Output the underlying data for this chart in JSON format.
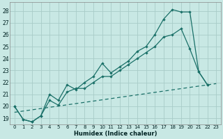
{
  "xlabel": "Humidex (Indice chaleur)",
  "background_color": "#c8e8e4",
  "grid_color": "#a8ccc8",
  "line_color": "#1a7068",
  "xlim": [
    -0.5,
    23.5
  ],
  "ylim": [
    18.5,
    28.7
  ],
  "yticks": [
    19,
    20,
    21,
    22,
    23,
    24,
    25,
    26,
    27,
    28
  ],
  "xticks": [
    0,
    1,
    2,
    3,
    4,
    5,
    6,
    7,
    8,
    9,
    10,
    11,
    12,
    13,
    14,
    15,
    16,
    17,
    18,
    19,
    20,
    21,
    22,
    23
  ],
  "series1_x": [
    0,
    1,
    2,
    3,
    4,
    5,
    6,
    7,
    8,
    9,
    10,
    11,
    12,
    13,
    14,
    15,
    16,
    17,
    18,
    19,
    20,
    21,
    22,
    23
  ],
  "series1_y": [
    20.0,
    18.9,
    18.7,
    19.2,
    21.0,
    20.5,
    21.8,
    21.4,
    22.0,
    22.5,
    23.6,
    22.8,
    23.3,
    23.8,
    24.6,
    25.0,
    26.0,
    27.3,
    28.1,
    27.9,
    27.9,
    22.9,
    21.8,
    null
  ],
  "series2_x": [
    0,
    1,
    2,
    3,
    4,
    5,
    6,
    7,
    8,
    9,
    10,
    11,
    12,
    13,
    14,
    15,
    16,
    17,
    18,
    19,
    20,
    21,
    22,
    23
  ],
  "series2_y": [
    20.0,
    18.9,
    18.7,
    19.2,
    20.5,
    20.1,
    21.2,
    21.5,
    21.5,
    22.0,
    22.5,
    22.5,
    23.0,
    23.5,
    24.0,
    24.5,
    25.0,
    25.8,
    26.0,
    26.5,
    24.8,
    22.9,
    21.8,
    null
  ],
  "series3_x": [
    0,
    23
  ],
  "series3_y": [
    19.5,
    21.9
  ]
}
